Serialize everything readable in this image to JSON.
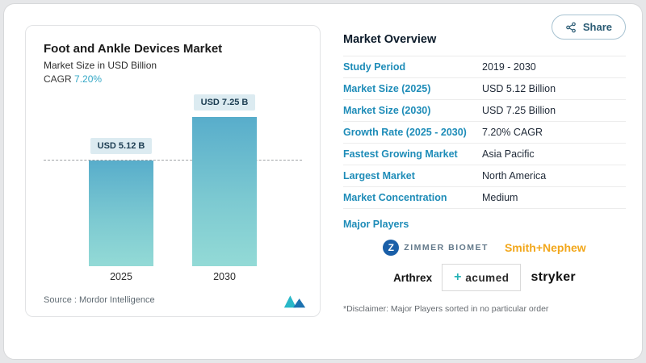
{
  "share": {
    "label": "Share"
  },
  "chart": {
    "title": "Foot and Ankle Devices Market",
    "subtitle": "Market Size in USD Billion",
    "cagr_label": "CAGR",
    "cagr_value": "7.20%",
    "bars": [
      {
        "year": "2025",
        "label": "USD 5.12 B",
        "value": 5.12
      },
      {
        "year": "2030",
        "label": "USD 7.25 B",
        "value": 7.25
      }
    ],
    "source_label": "Source :",
    "source_value": "Mordor Intelligence"
  },
  "overview": {
    "title": "Market Overview",
    "rows": [
      {
        "label": "Study Period",
        "value": "2019 - 2030"
      },
      {
        "label": "Market Size (2025)",
        "value": "USD 5.12 Billion"
      },
      {
        "label": "Market Size (2030)",
        "value": "USD 7.25 Billion"
      },
      {
        "label": "Growth Rate (2025 - 2030)",
        "value": "7.20% CAGR"
      },
      {
        "label": "Fastest Growing Market",
        "value": "Asia Pacific"
      },
      {
        "label": "Largest Market",
        "value": "North America"
      },
      {
        "label": "Market Concentration",
        "value": "Medium"
      }
    ],
    "major_players_label": "Major Players",
    "players": {
      "zimmer_initial": "Z",
      "zimmer": "ZIMMER BIOMET",
      "smith": "Smith+Nephew",
      "arthrex": "Arthrex",
      "acumed_plus": "+",
      "acumed": "acumed",
      "stryker": "stryker"
    },
    "disclaimer": "*Disclaimer: Major Players sorted in no particular order"
  },
  "chart_data": {
    "type": "bar",
    "categories": [
      "2025",
      "2030"
    ],
    "values": [
      5.12,
      7.25
    ],
    "title": "Foot and Ankle Devices Market",
    "subtitle": "Market Size in USD Billion",
    "xlabel": "",
    "ylabel": "Market Size in USD Billion",
    "ylim": [
      0,
      7.25
    ],
    "data_labels": [
      "USD 5.12 B",
      "USD 7.25 B"
    ],
    "annotations": [
      "CAGR 7.20%"
    ],
    "grid": false,
    "legend": "none",
    "accent_color": "#35a8c6",
    "bar_gradient_top": "#58adcb",
    "bar_gradient_bottom": "#93dad6"
  }
}
